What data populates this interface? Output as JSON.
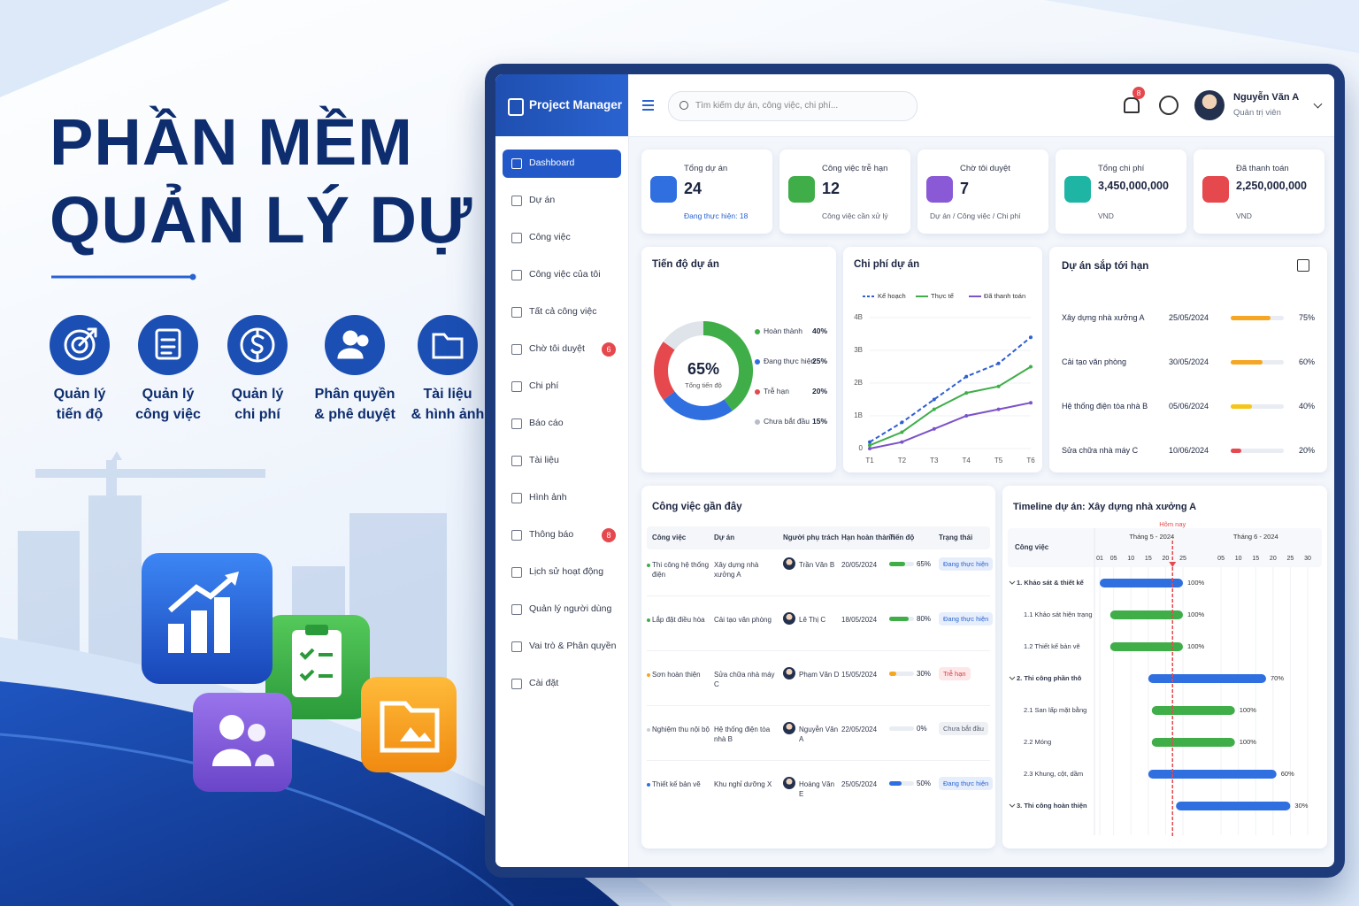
{
  "hero": {
    "title": [
      "PHẦN MỀM",
      "QUẢN LÝ DỰ ÁN"
    ],
    "features": [
      [
        "Quản lý",
        "tiến độ"
      ],
      [
        "Quản lý",
        "công việc"
      ],
      [
        "Quản lý",
        "chi phí"
      ],
      [
        "Phân quyền",
        "& phê duyệt"
      ],
      [
        "Tài liệu",
        "& hình ảnh"
      ]
    ]
  },
  "app": {
    "brand": "Project Manager",
    "search_placeholder": "Tìm kiếm dự án, công việc, chi phí...",
    "notification_count": "8",
    "user": {
      "name": "Nguyễn Văn A",
      "role": "Quản trị viên"
    },
    "sidebar": [
      {
        "label": "Dashboard"
      },
      {
        "label": "Dự án"
      },
      {
        "label": "Công việc"
      },
      {
        "label": "Công việc của tôi"
      },
      {
        "label": "Tất cả công việc"
      },
      {
        "label": "Chờ tôi duyệt",
        "badge": "6"
      },
      {
        "label": "Chi phí"
      },
      {
        "label": "Báo cáo"
      },
      {
        "label": "Tài liệu"
      },
      {
        "label": "Hình ảnh"
      },
      {
        "label": "Thông báo",
        "badge": "8"
      },
      {
        "label": "Lịch sử hoạt động"
      },
      {
        "label": "Quản lý người dùng"
      },
      {
        "label": "Vai trò & Phân quyền"
      },
      {
        "label": "Cài đặt"
      }
    ],
    "stats": [
      {
        "label": "Tổng dự án",
        "value": "24",
        "sub": "Đang thực hiện: 18"
      },
      {
        "label": "Công việc trễ hạn",
        "value": "12",
        "sub": "Công việc cần xử lý"
      },
      {
        "label": "Chờ tôi duyệt",
        "value": "7",
        "sub": "Dự án / Công việc / Chi phí"
      },
      {
        "label": "Tổng chi phí",
        "value": "3,450,000,000",
        "sub": "VND"
      },
      {
        "label": "Đã thanh toán",
        "value": "2,250,000,000",
        "sub": "VND"
      }
    ],
    "progress": {
      "type": "pie",
      "title": "Tiến độ dự án",
      "center": "65%",
      "center_label": "Tổng tiến độ",
      "items": [
        {
          "name": "Hoàn thành",
          "value": 40,
          "value_label": "40%",
          "color": "#3fae49"
        },
        {
          "name": "Đang thực hiện",
          "value": 25,
          "value_label": "25%",
          "color": "#2f6fe0"
        },
        {
          "name": "Trễ hạn",
          "value": 20,
          "value_label": "20%",
          "color": "#e5484d"
        },
        {
          "name": "Chưa bắt đầu",
          "value": 15,
          "value_label": "15%",
          "color": "#dfe3ea"
        }
      ]
    },
    "cost": {
      "type": "line",
      "title": "Chi phí dự án",
      "categories": [
        "T1",
        "T2",
        "T3",
        "T4",
        "T5",
        "T6"
      ],
      "series": [
        {
          "name": "Kế hoạch",
          "color": "#2f5fd0",
          "dashed": true,
          "values": [
            200000000,
            800000000,
            1500000000,
            2200000000,
            2600000000,
            3400000000
          ]
        },
        {
          "name": "Thực tế",
          "color": "#3fae49",
          "values": [
            100000000,
            500000000,
            1200000000,
            1700000000,
            1900000000,
            2500000000
          ]
        },
        {
          "name": "Đã thanh toán",
          "color": "#7b52c9",
          "values": [
            0,
            200000000,
            600000000,
            1000000000,
            1200000000,
            1400000000
          ]
        }
      ],
      "ylim": [
        0,
        4000000000
      ],
      "yticks": [
        0,
        {
          "value": 1000000000,
          "label": "1B"
        },
        {
          "value": 2000000000,
          "label": "2B"
        },
        {
          "value": 3000000000,
          "label": "3B"
        },
        {
          "value": 4000000000,
          "label": "4B"
        }
      ]
    },
    "deadlines": {
      "title": "Dự án sắp tới hạn",
      "xlim": [
        0,
        100
      ],
      "rows": [
        {
          "name": "Xây dựng nhà xưởng A",
          "date": "25/05/2024",
          "value": 75,
          "value_label": "75%",
          "color": "#f5a623"
        },
        {
          "name": "Cải tạo văn phòng",
          "date": "30/05/2024",
          "value": 60,
          "value_label": "60%",
          "color": "#f5a623"
        },
        {
          "name": "Hệ thống điện tòa nhà B",
          "date": "05/06/2024",
          "value": 40,
          "value_label": "40%",
          "color": "#f5c518"
        },
        {
          "name": "Sửa chữa nhà máy C",
          "date": "10/06/2024",
          "value": 20,
          "value_label": "20%",
          "color": "#e5484d"
        }
      ]
    },
    "tasks": {
      "title": "Công việc gần đây",
      "xlim": [
        0,
        100
      ],
      "headers": [
        "Công việc",
        "Dự án",
        "Người phụ trách",
        "Hạn hoàn thành",
        "Tiến độ",
        "Trạng thái"
      ],
      "rows": [
        {
          "task": "Thi công hệ thống điện",
          "project": "Xây dựng nhà xưởng A",
          "owner": "Trần Văn B",
          "due": "20/05/2024",
          "progress": 65,
          "progress_label": "65%",
          "status": "Đang thực hiện",
          "color": "#3fae49"
        },
        {
          "task": "Lắp đặt điều hòa",
          "project": "Cải tạo văn phòng",
          "owner": "Lê Thị C",
          "due": "18/05/2024",
          "progress": 80,
          "progress_label": "80%",
          "status": "Đang thực hiện",
          "color": "#3fae49"
        },
        {
          "task": "Sơn hoàn thiện",
          "project": "Sửa chữa nhà máy C",
          "owner": "Phạm Văn D",
          "due": "15/05/2024",
          "progress": 30,
          "progress_label": "30%",
          "status": "Trễ hạn",
          "color": "#f5a623"
        },
        {
          "task": "Nghiệm thu nội bộ",
          "project": "Hệ thống điện tòa nhà B",
          "owner": "Nguyễn Văn A",
          "due": "22/05/2024",
          "progress": 0,
          "progress_label": "0%",
          "status": "Chưa bắt đầu",
          "color": "#c9ced8"
        },
        {
          "task": "Thiết kế bản vẽ",
          "project": "Khu nghỉ dưỡng X",
          "owner": "Hoàng Văn E",
          "due": "25/05/2024",
          "progress": 50,
          "progress_label": "50%",
          "status": "Đang thực hiện",
          "color": "#2f6fe0"
        }
      ]
    },
    "timeline": {
      "type": "gantt",
      "title": "Timeline dự án: Xây dựng nhà xưởng A",
      "header": "Công việc",
      "months": [
        "Tháng 5 - 2024",
        "Tháng 6 - 2024"
      ],
      "xlim": [
        1,
        61
      ],
      "xticks": [
        {
          "value": 1,
          "label": "01"
        },
        {
          "value": 5,
          "label": "05"
        },
        10,
        15,
        20,
        25,
        {
          "value": 36,
          "label": "05"
        },
        {
          "value": 41,
          "label": "10"
        },
        {
          "value": 46,
          "label": "15"
        },
        {
          "value": 51,
          "label": "20"
        },
        {
          "value": 56,
          "label": "25"
        },
        {
          "value": 61,
          "label": "30"
        }
      ],
      "today": {
        "label": "Hôm nay",
        "value": 22
      },
      "tasks": [
        {
          "label": "1. Khảo sát & thiết kế",
          "group": true,
          "start": 1,
          "end": 25,
          "value": 100,
          "value_label": "100%",
          "color": "#2f6fe0"
        },
        {
          "label": "1.1 Khảo sát hiện trạng",
          "start": 4,
          "end": 25,
          "value": 100,
          "value_label": "100%",
          "color": "#3fae49"
        },
        {
          "label": "1.2 Thiết kế bản vẽ",
          "start": 4,
          "end": 25,
          "value": 100,
          "value_label": "100%",
          "color": "#3fae49"
        },
        {
          "label": "2. Thi công phần thô",
          "group": true,
          "start": 15,
          "end": 49,
          "value": 70,
          "value_label": "70%",
          "color": "#2f6fe0"
        },
        {
          "label": "2.1 San lấp mặt bằng",
          "start": 16,
          "end": 40,
          "value": 100,
          "value_label": "100%",
          "color": "#3fae49"
        },
        {
          "label": "2.2 Móng",
          "start": 16,
          "end": 40,
          "value": 100,
          "value_label": "100%",
          "color": "#3fae49"
        },
        {
          "label": "2.3 Khung, cột, dầm",
          "start": 15,
          "end": 52,
          "value": 60,
          "value_label": "60%",
          "color": "#2f6fe0"
        },
        {
          "label": "3. Thi công hoàn thiện",
          "group": true,
          "start": 23,
          "end": 56,
          "value": 30,
          "value_label": "30%",
          "color": "#2f6fe0"
        }
      ]
    }
  }
}
